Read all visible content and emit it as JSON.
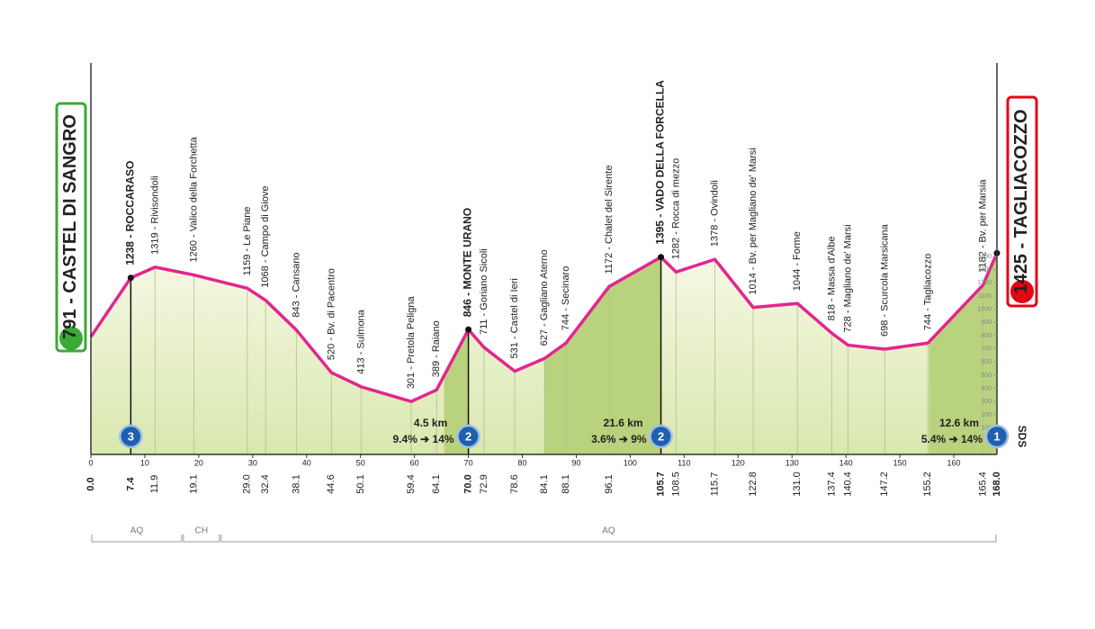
{
  "chart_data": {
    "type": "area",
    "x": [
      0.0,
      7.4,
      11.9,
      19.1,
      29.0,
      32.4,
      38.1,
      44.6,
      50.1,
      59.4,
      64.1,
      70.0,
      72.9,
      78.6,
      84.1,
      88.1,
      96.1,
      105.7,
      108.5,
      115.7,
      122.8,
      131.0,
      137.4,
      140.4,
      147.2,
      155.2,
      165.4,
      168.0
    ],
    "x_labels": [
      "0.0",
      "7.4",
      "11.9",
      "19.1",
      "29.0",
      "32.4",
      "38.1",
      "44.6",
      "50.1",
      "59.4",
      "64.1",
      "70.0",
      "72.9",
      "78.6",
      "84.1",
      "88.1",
      "96.1",
      "105.7",
      "108.5",
      "115.7",
      "122.8",
      "131.0",
      "137.4",
      "140.4",
      "147.2",
      "155.2",
      "165.4",
      "168.0"
    ],
    "values": [
      791,
      1238,
      1319,
      1260,
      1159,
      1068,
      843,
      520,
      413,
      301,
      389,
      846,
      711,
      531,
      627,
      744,
      1172,
      1395,
      1282,
      1378,
      1014,
      1044,
      818,
      728,
      698,
      744,
      1182,
      1425
    ],
    "waypoints": [
      "CASTEL DI SANGRO",
      "ROCCARASO",
      "Rivisondoli",
      "Valico della Forchetta",
      "Le Piane",
      "Campo di Giove",
      "Cansano",
      "Bv. di Pacentro",
      "Sulmona",
      "Pretola Peligna",
      "Raiano",
      "MONTE URANO",
      "Goriano Sicoli",
      "Castel di Ieri",
      "Gagliano Aterno",
      "Secinaro",
      "Chalet del Sirente",
      "VADO DELLA FORCELLA",
      "Rocca di mezzo",
      "Ovindoli",
      "Bv. per Magliano de' Marsi",
      "Forme",
      "Massa d'Albe",
      "Magliano de' Marsi",
      "Scurcola Marsicana",
      "Tagliacozzo",
      "Bv. per Marsia",
      "TAGLIACOZZO"
    ],
    "color": "#e3258f",
    "xlim": [
      0,
      168
    ],
    "xticks": [
      0,
      10,
      20,
      30,
      40,
      50,
      60,
      70,
      80,
      90,
      100,
      110,
      120,
      130,
      140,
      150,
      160
    ],
    "ylim": [
      -100,
      2900
    ],
    "yticks": [
      100,
      200,
      300,
      400,
      500,
      600,
      700,
      800,
      900,
      1000,
      1100,
      1200,
      1300,
      1400
    ],
    "climbs": [
      {
        "category": 3,
        "km": 7.4
      },
      {
        "category": 2,
        "km": 70.0,
        "length": 4.5,
        "length_label": "4.5 km",
        "grade": "9.4%",
        "max_grade": "14%"
      },
      {
        "category": 2,
        "km": 105.7,
        "length": 21.6,
        "length_label": "21.6 km",
        "grade": "3.6%",
        "max_grade": "9%"
      },
      {
        "category": 1,
        "km": 168.0,
        "length": 12.6,
        "length_label": "12.6 km",
        "grade": "5.4%",
        "max_grade": "14%"
      }
    ],
    "regions": [
      {
        "name": "AQ",
        "from": 0,
        "to": 17
      },
      {
        "name": "CH",
        "from": 17,
        "to": 24
      },
      {
        "name": "AQ",
        "from": 24,
        "to": 168
      }
    ],
    "logo": "SDS"
  }
}
